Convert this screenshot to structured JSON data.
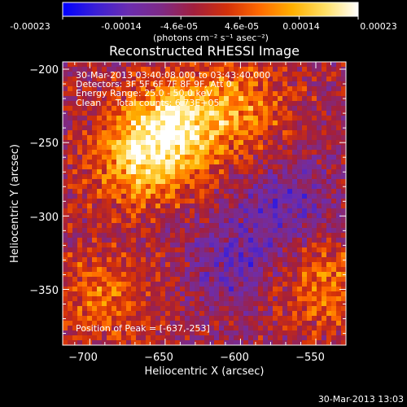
{
  "colorbar": {
    "ticks": [
      "-0.00023",
      "-0.00014",
      "-4.6e-05",
      "4.6e-05",
      "0.00014",
      "0.00023"
    ],
    "unit_label": "(photons cm⁻² s⁻¹ asec⁻²)",
    "colormap": [
      "#0000ff",
      "#3a1fd6",
      "#6b2db0",
      "#7e2a86",
      "#a21f3d",
      "#d2300a",
      "#ff6a00",
      "#ffb000",
      "#ffe066",
      "#ffffff"
    ]
  },
  "chart_data": {
    "type": "heatmap",
    "title": "Reconstructed RHESSI Image",
    "xlabel": "Heliocentric X (arcsec)",
    "ylabel": "Heliocentric Y (arcsec)",
    "xlim": [
      -718,
      -530
    ],
    "ylim": [
      -388,
      -195
    ],
    "xticks": [
      -700,
      -650,
      -600,
      -550
    ],
    "yticks": [
      -200,
      -250,
      -300,
      -350
    ],
    "xtick_labels": [
      "−700",
      "−650",
      "−600",
      "−550"
    ],
    "ytick_labels": [
      "−200",
      "−250",
      "−300",
      "−350"
    ],
    "value_range": [
      -0.00023,
      0.00023
    ],
    "peak_position": [
      -637,
      -253
    ],
    "hot_sources": [
      {
        "x": -645,
        "y": -240,
        "amplitude": 0.00023
      },
      {
        "x": -670,
        "y": -265,
        "amplitude": 0.00014
      },
      {
        "x": -600,
        "y": -225,
        "amplitude": 0.00012
      },
      {
        "x": -545,
        "y": -345,
        "amplitude": 0.00011
      },
      {
        "x": -690,
        "y": -355,
        "amplitude": 0.0001
      }
    ],
    "cold_sources": [
      {
        "x": -570,
        "y": -295,
        "amplitude": -0.0001
      },
      {
        "x": -605,
        "y": -335,
        "amplitude": -8e-05
      }
    ]
  },
  "annotations": {
    "time_range": "30-Mar-2013 03:40:08.000 to 03:43:40.000",
    "detectors": "Detectors: 3F 5F 6F 7F 8F 9F, Att 0",
    "energy_range": "Energy Range: 25.0 - 50.0 keV",
    "method_counts": "Clean     Total counts: 6.73E+05",
    "peak_label": "Position of Peak = [-637,-253]"
  },
  "footer": {
    "timestamp": "30-Mar-2013 13:03"
  }
}
